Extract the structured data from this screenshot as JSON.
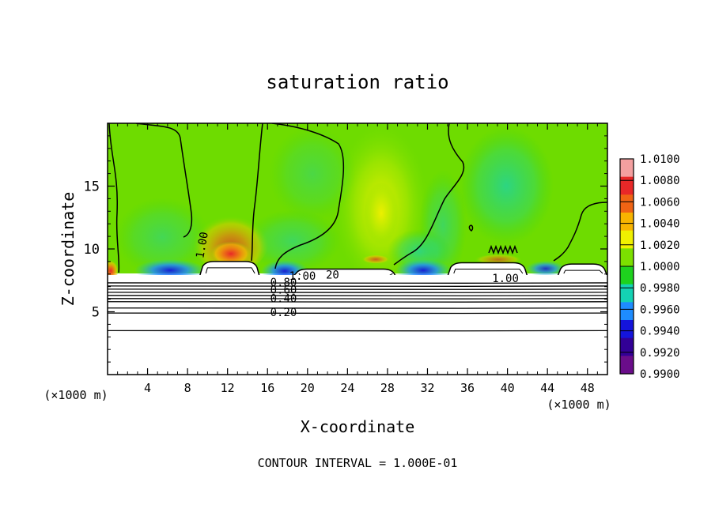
{
  "chart_data": {
    "type": "heatmap",
    "title": "saturation ratio",
    "xlabel": "X-coordinate",
    "ylabel": "Z-coordinate",
    "x_unit": "(×1000 m)",
    "y_unit": "(×1000 m)",
    "xlim": [
      0,
      50
    ],
    "ylim": [
      0,
      20
    ],
    "x_ticks": [
      4,
      8,
      12,
      16,
      20,
      24,
      28,
      32,
      36,
      40,
      44,
      48
    ],
    "y_ticks": [
      5,
      10,
      15
    ],
    "footer": "CONTOUR INTERVAL = 1.000E-01",
    "colorbar": {
      "labels": [
        "1.0100",
        "1.0080",
        "1.0060",
        "1.0040",
        "1.0020",
        "1.0000",
        "0.9980",
        "0.9960",
        "0.9940",
        "0.9920",
        "0.9900"
      ],
      "colors": [
        "#f4a0a0",
        "#e82828",
        "#f06414",
        "#f8b400",
        "#f0f000",
        "#7ce000",
        "#1ed21e",
        "#14d2b4",
        "#1e8cff",
        "#1414dc",
        "#320096",
        "#6a0d8a"
      ]
    },
    "contour_labels": [
      {
        "text": "1.00",
        "x": 9.5,
        "z": 10.3,
        "rotate": -80
      },
      {
        "text": "1.00",
        "x": 19.5,
        "z": 7.8
      },
      {
        "text": "20",
        "x": 22.5,
        "z": 7.9
      },
      {
        "text": "1.00",
        "x": 39.8,
        "z": 7.6
      },
      {
        "text": "0.80",
        "x": 17.6,
        "z": 7.3
      },
      {
        "text": "0.60",
        "x": 17.6,
        "z": 6.7
      },
      {
        "text": "0.40",
        "x": 17.6,
        "z": 6.0
      },
      {
        "text": "0.20",
        "x": 17.6,
        "z": 4.9
      }
    ],
    "contour_levels_z": [
      7.3,
      7.05,
      6.8,
      6.55,
      6.3,
      6.05,
      5.8,
      5.3,
      4.9,
      3.5
    ],
    "cloud_regions": [
      {
        "x0": 9.2,
        "x1": 15.2,
        "ztop": 9.0
      },
      {
        "x0": 18.5,
        "x1": 29.0,
        "ztop": 8.4
      },
      {
        "x0": 34.0,
        "x1": 42.0,
        "ztop": 8.9
      },
      {
        "x0": 45.0,
        "x1": 50.0,
        "ztop": 8.8
      }
    ]
  }
}
